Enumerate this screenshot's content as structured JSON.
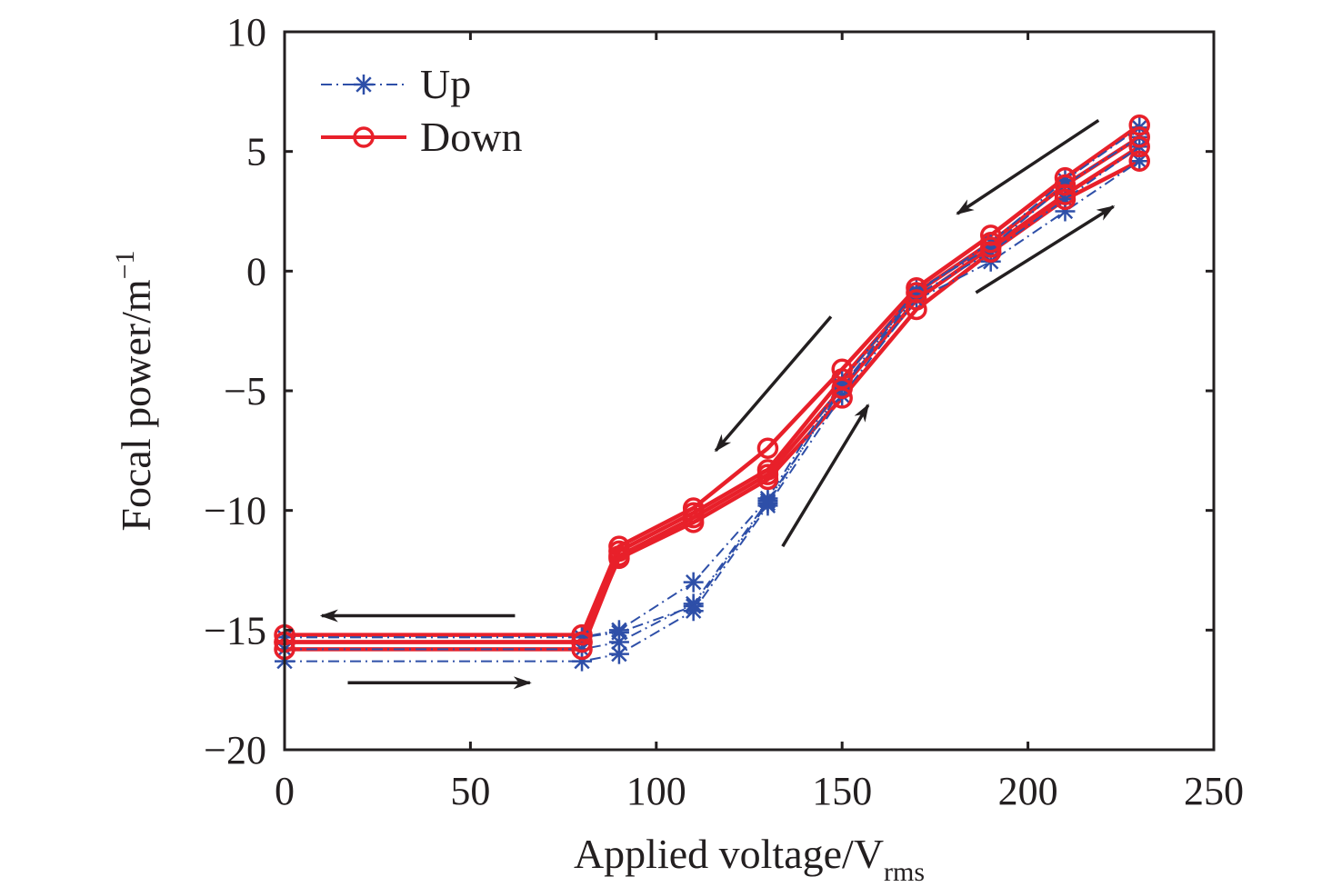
{
  "chart_data": {
    "type": "line",
    "title": "",
    "xlabel": "Applied voltage/V",
    "xlabel_sub": "rms",
    "ylabel": "Focal power/m",
    "ylabel_sup": "−1",
    "xlim": [
      0,
      250
    ],
    "ylim": [
      -20,
      10
    ],
    "xticks": [
      0,
      50,
      100,
      150,
      200,
      250
    ],
    "yticks": [
      10,
      5,
      0,
      -5,
      -10,
      -15,
      -20
    ],
    "xtick_labels": [
      "0",
      "50",
      "100",
      "150",
      "200",
      "250"
    ],
    "ytick_labels": [
      "10",
      "5",
      "0",
      "−5",
      "−10",
      "−15",
      "−20"
    ],
    "grid": false,
    "legend": {
      "position": "top-left",
      "entries": [
        {
          "label": "Up",
          "color": "#2e4fa8",
          "marker": "asterisk",
          "style": "dash-dot"
        },
        {
          "label": "Down",
          "color": "#e8202a",
          "marker": "circle",
          "style": "solid"
        }
      ]
    },
    "x": [
      0,
      80,
      90,
      110,
      130,
      150,
      170,
      190,
      210,
      230
    ],
    "series": [
      {
        "name": "Up",
        "group": "Up",
        "values": [
          -16.3,
          -16.3,
          -16.0,
          -14.2,
          -9.8,
          -5.2,
          -1.2,
          0.4,
          2.5,
          4.6
        ]
      },
      {
        "name": "Up",
        "group": "Up",
        "values": [
          -15.8,
          -15.8,
          -15.5,
          -13.9,
          -9.6,
          -4.9,
          -1.0,
          0.8,
          3.0,
          5.2
        ]
      },
      {
        "name": "Up",
        "group": "Up",
        "values": [
          -15.3,
          -15.3,
          -15.0,
          -13.0,
          -9.5,
          -4.6,
          -0.8,
          1.0,
          3.6,
          5.6
        ]
      },
      {
        "name": "Up",
        "group": "Up",
        "values": [
          -15.3,
          -15.3,
          -15.1,
          -14.0,
          -9.7,
          -4.8,
          -0.9,
          1.2,
          3.8,
          6.0
        ]
      },
      {
        "name": "Down",
        "group": "Down",
        "values": [
          -15.2,
          -15.2,
          -11.5,
          -9.9,
          -7.4,
          -4.1,
          -0.7,
          1.5,
          3.9,
          6.1
        ]
      },
      {
        "name": "Down",
        "group": "Down",
        "values": [
          -15.5,
          -15.5,
          -11.7,
          -10.1,
          -8.3,
          -4.5,
          -0.9,
          1.2,
          3.6,
          5.6
        ]
      },
      {
        "name": "Down",
        "group": "Down",
        "values": [
          -15.8,
          -15.8,
          -11.9,
          -10.3,
          -8.5,
          -4.9,
          -1.2,
          1.0,
          3.2,
          5.2
        ]
      },
      {
        "name": "Down",
        "group": "Down",
        "values": [
          -15.5,
          -15.5,
          -12.0,
          -10.5,
          -8.7,
          -5.3,
          -1.6,
          0.8,
          3.0,
          4.6
        ]
      }
    ],
    "annotations": [
      {
        "type": "arrow",
        "label": "down-sweep-arrow-low",
        "from": [
          62,
          -14.4
        ],
        "to": [
          10,
          -14.4
        ]
      },
      {
        "type": "arrow",
        "label": "up-sweep-arrow-low",
        "from": [
          17,
          -17.2
        ],
        "to": [
          66,
          -17.2
        ]
      },
      {
        "type": "arrow",
        "label": "down-sweep-arrow-mid",
        "from": [
          147,
          -1.9
        ],
        "to": [
          116,
          -7.5
        ]
      },
      {
        "type": "arrow",
        "label": "up-sweep-arrow-mid",
        "from": [
          134,
          -11.5
        ],
        "to": [
          157,
          -5.6
        ]
      },
      {
        "type": "arrow",
        "label": "down-sweep-arrow-high",
        "from": [
          219,
          6.3
        ],
        "to": [
          181,
          2.4
        ]
      },
      {
        "type": "arrow",
        "label": "up-sweep-arrow-high",
        "from": [
          186,
          -0.9
        ],
        "to": [
          223,
          2.7
        ]
      }
    ]
  }
}
